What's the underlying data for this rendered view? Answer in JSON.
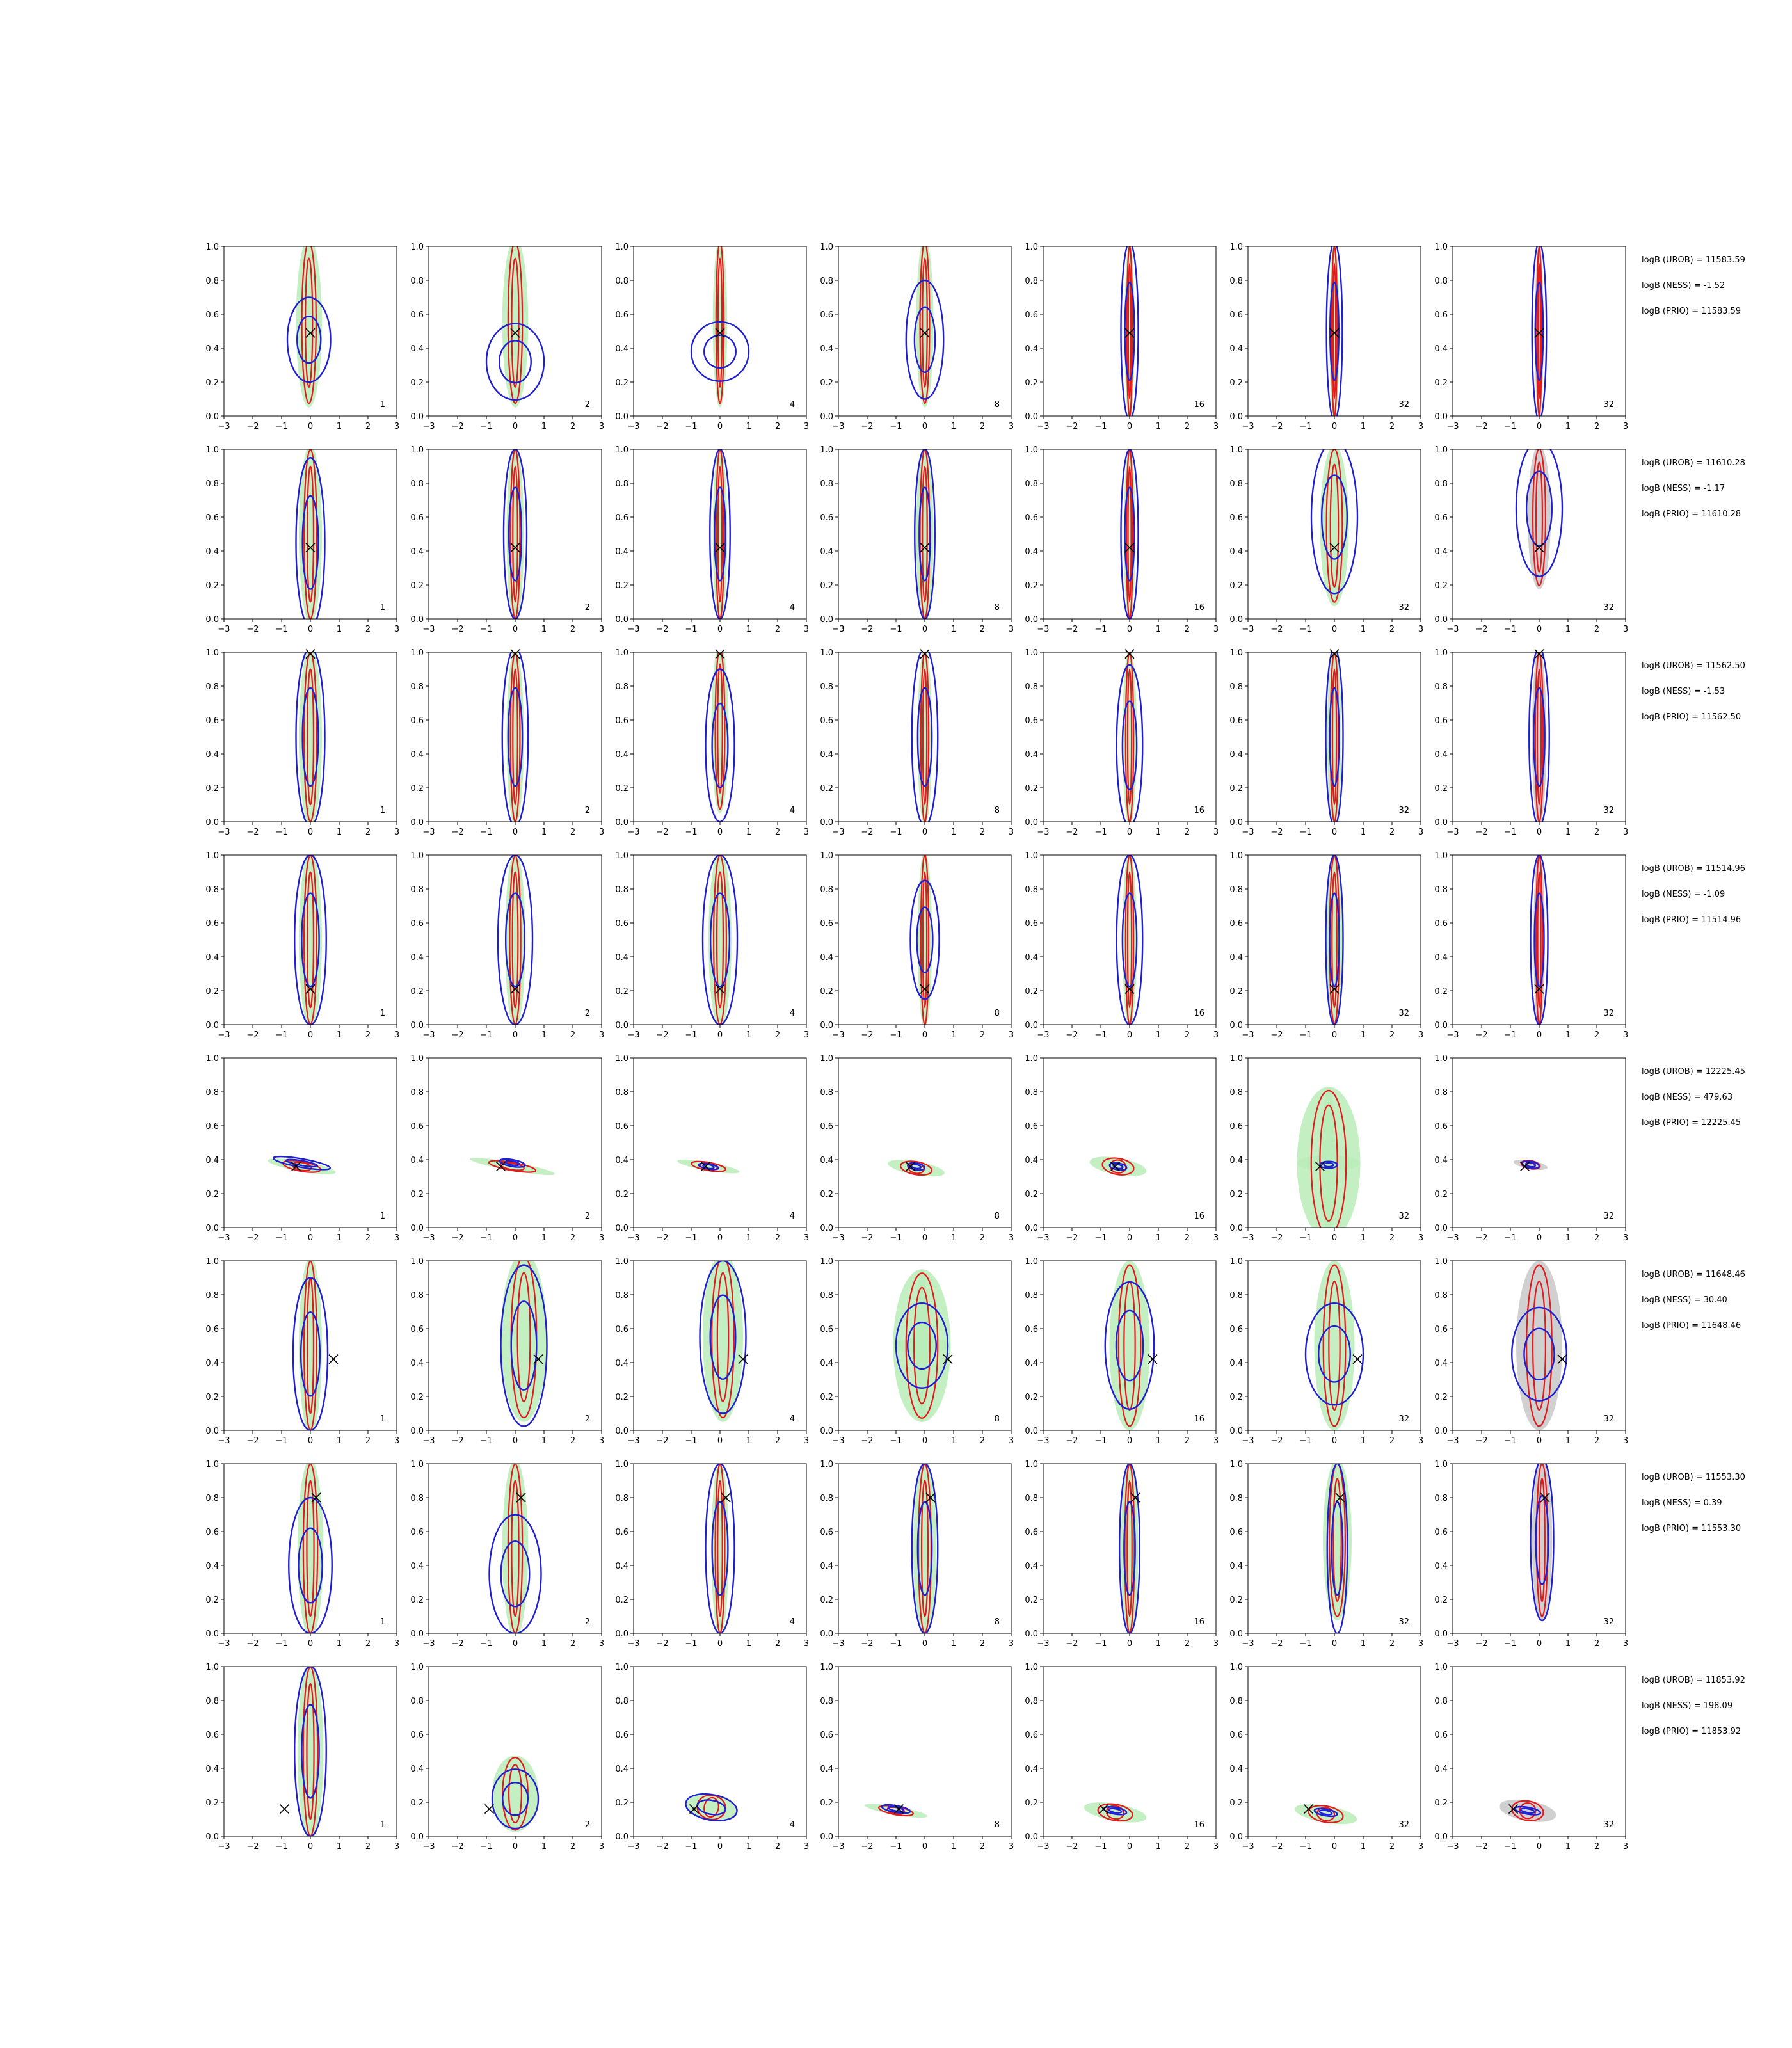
{
  "figure": {
    "columns": 7,
    "rows": 8,
    "xlim": [
      -3,
      3
    ],
    "ylim": [
      0.0,
      1.0
    ],
    "x_ticks": [
      "−3",
      "−2",
      "−1",
      "0",
      "1",
      "2",
      "3"
    ],
    "y_ticks": [
      "0.0",
      "0.2",
      "0.4",
      "0.6",
      "0.8",
      "1.0"
    ],
    "panel_labels": [
      "1",
      "2",
      "4",
      "8",
      "16",
      "32",
      "32"
    ],
    "colors": {
      "red": "#e31a1c",
      "blue": "#1f1fd0",
      "green_fill": "#b8ecb8",
      "gray_fill": "#c8c8c8",
      "marker": "#000000"
    }
  },
  "chart_data": {
    "type": "contour",
    "xlim": [
      -3,
      3
    ],
    "ylim": [
      0.0,
      1.0
    ],
    "grid": false,
    "rows": [
      {
        "marker": {
          "x": 0.0,
          "y": 0.49
        },
        "annotations": [
          "logB (UROB) = 11583.59",
          "logB (NESS) = -1.52",
          "logB (PRIO) = 11583.59"
        ],
        "panels": [
          {
            "label": "1",
            "shape": "vertical",
            "cx": -0.05,
            "cy": 0.55,
            "w": 0.9,
            "h": 1.0,
            "blue_cy": 0.45,
            "blue_h": 0.5,
            "blue_w": 1.5
          },
          {
            "label": "2",
            "shape": "vertical",
            "cx": 0.0,
            "cy": 0.55,
            "w": 0.9,
            "h": 1.0,
            "blue_cy": 0.32,
            "blue_h": 0.45,
            "blue_w": 2.0
          },
          {
            "label": "4",
            "shape": "vertical",
            "cx": 0.0,
            "cy": 0.55,
            "w": 0.5,
            "h": 1.0,
            "blue_cy": 0.38,
            "blue_h": 0.35,
            "blue_w": 2.0
          },
          {
            "label": "8",
            "shape": "vertical",
            "cx": 0.0,
            "cy": 0.55,
            "w": 0.6,
            "h": 1.0,
            "blue_cy": 0.45,
            "blue_h": 0.7,
            "blue_w": 1.3
          },
          {
            "label": "16",
            "shape": "vertical",
            "cx": 0.0,
            "cy": 0.5,
            "w": 0.35,
            "h": 1.05,
            "blue_cy": 0.5,
            "blue_h": 1.05,
            "blue_w": 0.6
          },
          {
            "label": "32",
            "shape": "vertical",
            "cx": 0.0,
            "cy": 0.5,
            "w": 0.35,
            "h": 1.05,
            "blue_cy": 0.5,
            "blue_h": 1.05,
            "blue_w": 0.55
          },
          {
            "label": "32",
            "shape": "vertical",
            "cx": 0.0,
            "cy": 0.5,
            "w": 0.3,
            "h": 1.05,
            "blue_cy": 0.5,
            "blue_h": 1.05,
            "blue_w": 0.5,
            "gray": true
          }
        ]
      },
      {
        "marker": {
          "x": 0.0,
          "y": 0.42
        },
        "annotations": [
          "logB (UROB) = 11610.28",
          "logB (NESS) = -1.17",
          "logB (PRIO) = 11610.28"
        ],
        "panels": [
          {
            "label": "1",
            "shape": "vertical",
            "cx": 0.0,
            "cy": 0.5,
            "w": 0.8,
            "h": 1.05,
            "blue_cy": 0.45,
            "blue_h": 1.0,
            "blue_w": 1.0
          },
          {
            "label": "2",
            "shape": "vertical",
            "cx": 0.0,
            "cy": 0.5,
            "w": 0.6,
            "h": 1.05,
            "blue_cy": 0.5,
            "blue_h": 1.0,
            "blue_w": 0.8
          },
          {
            "label": "4",
            "shape": "vertical",
            "cx": 0.0,
            "cy": 0.5,
            "w": 0.5,
            "h": 1.05,
            "blue_cy": 0.5,
            "blue_h": 1.0,
            "blue_w": 0.7
          },
          {
            "label": "8",
            "shape": "vertical",
            "cx": 0.0,
            "cy": 0.5,
            "w": 0.6,
            "h": 1.05,
            "blue_cy": 0.5,
            "blue_h": 1.0,
            "blue_w": 0.7
          },
          {
            "label": "16",
            "shape": "vertical",
            "cx": 0.0,
            "cy": 0.5,
            "w": 0.4,
            "h": 1.05,
            "blue_cy": 0.5,
            "blue_h": 1.0,
            "blue_w": 0.6
          },
          {
            "label": "32",
            "shape": "vertical",
            "cx": 0.0,
            "cy": 0.55,
            "w": 1.0,
            "h": 0.95,
            "blue_cy": 0.6,
            "blue_h": 0.9,
            "blue_w": 1.6
          },
          {
            "label": "32",
            "shape": "vertical",
            "cx": 0.0,
            "cy": 0.6,
            "w": 0.8,
            "h": 0.85,
            "blue_cy": 0.65,
            "blue_h": 0.8,
            "blue_w": 1.6,
            "gray": true
          }
        ]
      },
      {
        "marker": {
          "x": 0.0,
          "y": 0.99
        },
        "annotations": [
          "logB (UROB) = 11562.50",
          "logB (NESS) = -1.53",
          "logB (PRIO) = 11562.50"
        ],
        "panels": [
          {
            "label": "1",
            "shape": "vertical",
            "cx": 0.0,
            "cy": 0.5,
            "w": 0.8,
            "h": 1.05,
            "blue_cy": 0.5,
            "blue_h": 1.05,
            "blue_w": 1.0
          },
          {
            "label": "2",
            "shape": "vertical",
            "cx": 0.0,
            "cy": 0.5,
            "w": 0.6,
            "h": 1.05,
            "blue_cy": 0.5,
            "blue_h": 1.05,
            "blue_w": 0.9
          },
          {
            "label": "4",
            "shape": "vertical",
            "cx": 0.0,
            "cy": 0.55,
            "w": 0.6,
            "h": 1.0,
            "blue_cy": 0.45,
            "blue_h": 0.9,
            "blue_w": 1.0
          },
          {
            "label": "8",
            "shape": "vertical",
            "cx": 0.0,
            "cy": 0.5,
            "w": 0.5,
            "h": 1.05,
            "blue_cy": 0.5,
            "blue_h": 1.05,
            "blue_w": 0.9
          },
          {
            "label": "16",
            "shape": "vertical",
            "cx": 0.0,
            "cy": 0.5,
            "w": 0.5,
            "h": 1.05,
            "blue_cy": 0.45,
            "blue_h": 0.95,
            "blue_w": 0.9
          },
          {
            "label": "32",
            "shape": "vertical",
            "cx": 0.0,
            "cy": 0.5,
            "w": 0.5,
            "h": 1.05,
            "blue_cy": 0.5,
            "blue_h": 1.05,
            "blue_w": 0.6
          },
          {
            "label": "32",
            "shape": "vertical",
            "cx": 0.0,
            "cy": 0.5,
            "w": 0.5,
            "h": 1.05,
            "blue_cy": 0.5,
            "blue_h": 1.05,
            "blue_w": 0.7,
            "gray": true
          }
        ]
      },
      {
        "marker": {
          "x": 0.0,
          "y": 0.21
        },
        "annotations": [
          "logB (UROB) = 11514.96",
          "logB (NESS) = -1.09",
          "logB (PRIO) = 11514.96"
        ],
        "panels": [
          {
            "label": "1",
            "shape": "vertical",
            "cx": 0.0,
            "cy": 0.5,
            "w": 0.8,
            "h": 1.05,
            "blue_cy": 0.5,
            "blue_h": 1.0,
            "blue_w": 1.1
          },
          {
            "label": "2",
            "shape": "vertical",
            "cx": 0.0,
            "cy": 0.5,
            "w": 0.7,
            "h": 1.05,
            "blue_cy": 0.5,
            "blue_h": 1.0,
            "blue_w": 1.2
          },
          {
            "label": "4",
            "shape": "vertical",
            "cx": 0.0,
            "cy": 0.5,
            "w": 0.8,
            "h": 1.05,
            "blue_cy": 0.5,
            "blue_h": 1.0,
            "blue_w": 1.2
          },
          {
            "label": "8",
            "shape": "vertical",
            "cx": 0.0,
            "cy": 0.5,
            "w": 0.5,
            "h": 1.05,
            "blue_cy": 0.5,
            "blue_h": 0.7,
            "blue_w": 1.0
          },
          {
            "label": "16",
            "shape": "vertical",
            "cx": 0.0,
            "cy": 0.5,
            "w": 0.5,
            "h": 1.05,
            "blue_cy": 0.5,
            "blue_h": 1.0,
            "blue_w": 0.9
          },
          {
            "label": "32",
            "shape": "vertical",
            "cx": 0.0,
            "cy": 0.5,
            "w": 0.6,
            "h": 1.05,
            "blue_cy": 0.5,
            "blue_h": 1.0,
            "blue_w": 0.6
          },
          {
            "label": "32",
            "shape": "vertical",
            "cx": 0.0,
            "cy": 0.5,
            "w": 0.4,
            "h": 1.05,
            "blue_cy": 0.5,
            "blue_h": 1.0,
            "blue_w": 0.6,
            "gray": true
          }
        ]
      },
      {
        "marker": {
          "x": -0.5,
          "y": 0.36
        },
        "annotations": [
          "logB (UROB) = 12225.45",
          "logB (NESS) = 479.63",
          "logB (PRIO) = 12225.45"
        ],
        "panels": [
          {
            "label": "1",
            "shape": "diagonal",
            "cx": -0.3,
            "cy": 0.36,
            "w": 2.4,
            "h": 0.06,
            "blue_cy": 0.38,
            "blue_h": 0.05,
            "blue_w": 2.0
          },
          {
            "label": "2",
            "shape": "diagonal",
            "cx": -0.1,
            "cy": 0.36,
            "w": 3.0,
            "h": 0.05,
            "blue_cy": 0.38,
            "blue_h": 0.04,
            "blue_w": 0.9
          },
          {
            "label": "4",
            "shape": "diagonal",
            "cx": -0.4,
            "cy": 0.36,
            "w": 2.2,
            "h": 0.05,
            "blue_cy": 0.36,
            "blue_h": 0.03,
            "blue_w": 0.7
          },
          {
            "label": "8",
            "shape": "diagonal",
            "cx": -0.3,
            "cy": 0.35,
            "w": 2.0,
            "h": 0.08,
            "blue_cy": 0.36,
            "blue_h": 0.04,
            "blue_w": 0.6
          },
          {
            "label": "16",
            "shape": "diagonal",
            "cx": -0.4,
            "cy": 0.36,
            "w": 2.0,
            "h": 0.1,
            "blue_cy": 0.36,
            "blue_h": 0.04,
            "blue_w": 0.6
          },
          {
            "label": "32",
            "shape": "cross",
            "cx": -0.2,
            "cy": 0.38,
            "w": 2.2,
            "h": 0.9,
            "blue_cy": 0.37,
            "blue_h": 0.04,
            "blue_w": 0.6
          },
          {
            "label": "32",
            "shape": "diagonal",
            "cx": -0.3,
            "cy": 0.37,
            "w": 1.2,
            "h": 0.05,
            "blue_cy": 0.37,
            "blue_h": 0.04,
            "blue_w": 0.6,
            "gray": true
          }
        ]
      },
      {
        "marker": {
          "x": 0.8,
          "y": 0.42
        },
        "annotations": [
          "logB (UROB) = 11648.46",
          "logB (NESS) = 30.40",
          "logB (PRIO) = 11648.46"
        ],
        "panels": [
          {
            "label": "1",
            "shape": "vertical",
            "cx": 0.0,
            "cy": 0.5,
            "w": 0.8,
            "h": 1.05,
            "blue_cy": 0.45,
            "blue_h": 0.9,
            "blue_w": 1.2
          },
          {
            "label": "2",
            "shape": "blob",
            "cx": 0.3,
            "cy": 0.55,
            "w": 1.6,
            "h": 1.0,
            "blue_cy": 0.5,
            "blue_h": 0.95,
            "blue_w": 1.6
          },
          {
            "label": "4",
            "shape": "blob",
            "cx": 0.1,
            "cy": 0.55,
            "w": 1.4,
            "h": 1.0,
            "blue_cy": 0.55,
            "blue_h": 0.9,
            "blue_w": 1.6
          },
          {
            "label": "8",
            "shape": "cross",
            "cx": -0.1,
            "cy": 0.5,
            "w": 2.0,
            "h": 0.9,
            "blue_cy": 0.5,
            "blue_h": 0.5,
            "blue_w": 1.8
          },
          {
            "label": "16",
            "shape": "blob",
            "cx": 0.0,
            "cy": 0.5,
            "w": 1.4,
            "h": 1.0,
            "blue_cy": 0.5,
            "blue_h": 0.75,
            "blue_w": 1.7
          },
          {
            "label": "32",
            "shape": "blob",
            "cx": 0.0,
            "cy": 0.5,
            "w": 1.4,
            "h": 1.0,
            "blue_cy": 0.45,
            "blue_h": 0.6,
            "blue_w": 2.0
          },
          {
            "label": "32",
            "shape": "blob",
            "cx": 0.0,
            "cy": 0.5,
            "w": 1.6,
            "h": 1.0,
            "blue_cy": 0.45,
            "blue_h": 0.55,
            "blue_w": 1.9,
            "gray": true
          }
        ]
      },
      {
        "marker": {
          "x": 0.2,
          "y": 0.8
        },
        "annotations": [
          "logB (UROB) = 11553.30",
          "logB (NESS) = 0.39",
          "logB (PRIO) = 11553.30"
        ],
        "panels": [
          {
            "label": "1",
            "shape": "vertical",
            "cx": 0.0,
            "cy": 0.5,
            "w": 0.9,
            "h": 1.05,
            "blue_cy": 0.4,
            "blue_h": 0.8,
            "blue_w": 1.5
          },
          {
            "label": "2",
            "shape": "vertical",
            "cx": 0.0,
            "cy": 0.5,
            "w": 0.9,
            "h": 1.05,
            "blue_cy": 0.35,
            "blue_h": 0.7,
            "blue_w": 1.8
          },
          {
            "label": "4",
            "shape": "vertical",
            "cx": 0.0,
            "cy": 0.5,
            "w": 0.6,
            "h": 1.05,
            "blue_cy": 0.5,
            "blue_h": 1.0,
            "blue_w": 1.0
          },
          {
            "label": "8",
            "shape": "vertical",
            "cx": 0.0,
            "cy": 0.5,
            "w": 0.8,
            "h": 1.05,
            "blue_cy": 0.5,
            "blue_h": 1.0,
            "blue_w": 0.9
          },
          {
            "label": "16",
            "shape": "vertical",
            "cx": 0.0,
            "cy": 0.5,
            "w": 0.6,
            "h": 1.05,
            "blue_cy": 0.5,
            "blue_h": 1.0,
            "blue_w": 0.7
          },
          {
            "label": "32",
            "shape": "vertical",
            "cx": 0.1,
            "cy": 0.55,
            "w": 1.0,
            "h": 0.95,
            "blue_cy": 0.5,
            "blue_h": 1.0,
            "blue_w": 0.7
          },
          {
            "label": "32",
            "shape": "vertical",
            "cx": 0.1,
            "cy": 0.55,
            "w": 0.7,
            "h": 0.95,
            "blue_cy": 0.55,
            "blue_h": 0.95,
            "blue_w": 0.8,
            "gray": true
          }
        ]
      },
      {
        "marker": {
          "x": -0.9,
          "y": 0.16
        },
        "annotations": [
          "logB (UROB) = 11853.92",
          "logB (NESS) = 198.09",
          "logB (PRIO) = 11853.92"
        ],
        "panels": [
          {
            "label": "1",
            "shape": "vertical",
            "cx": 0.0,
            "cy": 0.5,
            "w": 0.9,
            "h": 1.05,
            "blue_cy": 0.5,
            "blue_h": 1.0,
            "blue_w": 1.1
          },
          {
            "label": "2",
            "shape": "blob",
            "cx": 0.0,
            "cy": 0.25,
            "w": 1.6,
            "h": 0.45,
            "blue_cy": 0.22,
            "blue_h": 0.35,
            "blue_w": 1.6
          },
          {
            "label": "4",
            "shape": "diagonal",
            "cx": -0.3,
            "cy": 0.17,
            "w": 1.8,
            "h": 0.15,
            "blue_cy": 0.17,
            "blue_h": 0.15,
            "blue_w": 1.8
          },
          {
            "label": "8",
            "shape": "diagonal",
            "cx": -1.0,
            "cy": 0.15,
            "w": 2.2,
            "h": 0.05,
            "blue_cy": 0.16,
            "blue_h": 0.04,
            "blue_w": 1.0
          },
          {
            "label": "16",
            "shape": "diagonal",
            "cx": -0.5,
            "cy": 0.14,
            "w": 2.2,
            "h": 0.1,
            "blue_cy": 0.15,
            "blue_h": 0.04,
            "blue_w": 0.8
          },
          {
            "label": "32",
            "shape": "diagonal",
            "cx": -0.3,
            "cy": 0.13,
            "w": 2.2,
            "h": 0.1,
            "blue_cy": 0.14,
            "blue_h": 0.04,
            "blue_w": 0.8
          },
          {
            "label": "32",
            "shape": "diagonal",
            "cx": -0.4,
            "cy": 0.15,
            "w": 2.0,
            "h": 0.12,
            "blue_cy": 0.15,
            "blue_h": 0.04,
            "blue_w": 0.9,
            "gray": true
          }
        ]
      }
    ]
  }
}
